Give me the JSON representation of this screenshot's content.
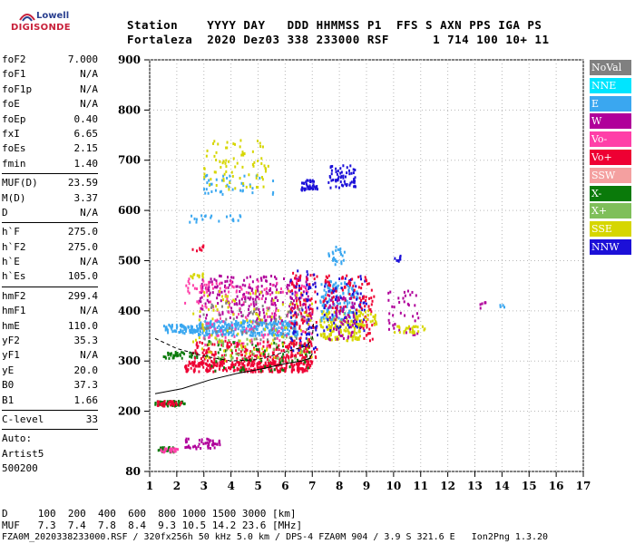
{
  "logo": {
    "line1": "Lowell",
    "line2": "DIGISONDE"
  },
  "header": {
    "line1": "Station    YYYY DAY   DDD HHMMSS P1  FFS S AXN PPS IGA PS",
    "line2": "Fortaleza  2020 Dez03 338 233000 RSF      1 714 100 10+ 11"
  },
  "parameters": [
    {
      "k": "foF2",
      "v": "7.000"
    },
    {
      "k": "foF1",
      "v": "N/A"
    },
    {
      "k": "foF1p",
      "v": "N/A"
    },
    {
      "k": "foE",
      "v": "N/A"
    },
    {
      "k": "foEp",
      "v": "0.40"
    },
    {
      "k": "fxI",
      "v": "6.65"
    },
    {
      "k": "foEs",
      "v": "2.15"
    },
    {
      "k": "fmin",
      "v": "1.40"
    },
    {
      "k": "MUF(D)",
      "v": "23.59"
    },
    {
      "k": "M(D)",
      "v": "3.37"
    },
    {
      "k": "D",
      "v": "N/A"
    },
    {
      "k": "h`F",
      "v": "275.0"
    },
    {
      "k": "h`F2",
      "v": "275.0"
    },
    {
      "k": "h`E",
      "v": "N/A"
    },
    {
      "k": "h`Es",
      "v": "105.0"
    },
    {
      "k": "hmF2",
      "v": "299.4"
    },
    {
      "k": "hmF1",
      "v": "N/A"
    },
    {
      "k": "hmE",
      "v": "110.0"
    },
    {
      "k": "yF2",
      "v": "35.3"
    },
    {
      "k": "yF1",
      "v": "N/A"
    },
    {
      "k": "yE",
      "v": "20.0"
    },
    {
      "k": "B0",
      "v": "37.3"
    },
    {
      "k": "B1",
      "v": "1.66"
    },
    {
      "k": "C-level",
      "v": "33"
    }
  ],
  "auto": {
    "line1": "Auto:",
    "line2": "Artist5",
    "line3": "500200"
  },
  "legend": [
    {
      "label": "NoVal",
      "color": "#808080"
    },
    {
      "label": "NNE",
      "color": "#00e5ff"
    },
    {
      "label": "E",
      "color": "#3aa7f0"
    },
    {
      "label": "W",
      "color": "#b0009a"
    },
    {
      "label": "Vo-",
      "color": "#ff3fa8"
    },
    {
      "label": "Vo+",
      "color": "#ee0033"
    },
    {
      "label": "SSW",
      "color": "#f4a0a0"
    },
    {
      "label": "X-",
      "color": "#0a7a0a"
    },
    {
      "label": "X+",
      "color": "#7fbf5a"
    },
    {
      "label": "SSE",
      "color": "#d6d600"
    },
    {
      "label": "NNW",
      "color": "#1c10d8"
    }
  ],
  "footer": {
    "d_line": "D     100  200  400  600  800 1000 1500 3000 [km]",
    "muf_line": "MUF   7.3  7.4  7.8  8.4  9.3 10.5 14.2 23.6 [MHz]",
    "file_line": "FZA0M_2020338233000.RSF / 320fx256h 50 kHz 5.0 km / DPS-4 FZA0M 904 / 3.9 S 321.6 E   Ion2Png 1.3.20"
  },
  "chart_data": {
    "type": "scatter",
    "xlim": [
      1,
      17
    ],
    "ylim": [
      80,
      900
    ],
    "xticks": [
      1,
      2,
      3,
      4,
      5,
      6,
      7,
      8,
      9,
      10,
      11,
      12,
      13,
      14,
      15,
      16,
      17
    ],
    "yticks": [
      80,
      200,
      300,
      400,
      500,
      600,
      700,
      800,
      900
    ],
    "grid": true,
    "legend_position": "right",
    "echo_clusters": [
      {
        "x": [
          1.2,
          2.3
        ],
        "y": [
          210,
          220
        ],
        "color": "#0a7a0a",
        "n": 60
      },
      {
        "x": [
          1.2,
          2.2
        ],
        "y": [
          210,
          220
        ],
        "color": "#ee0033",
        "n": 30
      },
      {
        "x": [
          1.3,
          1.9
        ],
        "y": [
          118,
          128
        ],
        "color": "#0a7a0a",
        "n": 25
      },
      {
        "x": [
          1.4,
          2.1
        ],
        "y": [
          118,
          126
        ],
        "color": "#ff3fa8",
        "n": 25
      },
      {
        "x": [
          2.3,
          3.6
        ],
        "y": [
          125,
          145
        ],
        "color": "#b0009a",
        "n": 50
      },
      {
        "x": [
          1.5,
          2.8
        ],
        "y": [
          305,
          318
        ],
        "color": "#0a7a0a",
        "n": 40
      },
      {
        "x": [
          2.3,
          7.0
        ],
        "y": [
          278,
          300
        ],
        "color": "#ee0033",
        "n": 260
      },
      {
        "x": [
          2.6,
          7.0
        ],
        "y": [
          290,
          340
        ],
        "color": "#ee0033",
        "n": 260
      },
      {
        "x": [
          3.0,
          7.1
        ],
        "y": [
          300,
          350
        ],
        "color": "#7fbf5a",
        "n": 70
      },
      {
        "x": [
          3.0,
          7.0
        ],
        "y": [
          280,
          340
        ],
        "color": "#0a7a0a",
        "n": 60
      },
      {
        "x": [
          2.8,
          6.5
        ],
        "y": [
          350,
          380
        ],
        "color": "#3aa7f0",
        "n": 300
      },
      {
        "x": [
          1.5,
          2.8
        ],
        "y": [
          355,
          372
        ],
        "color": "#3aa7f0",
        "n": 70
      },
      {
        "x": [
          2.8,
          7.0
        ],
        "y": [
          380,
          470
        ],
        "color": "#b0009a",
        "n": 250
      },
      {
        "x": [
          2.8,
          7.0
        ],
        "y": [
          330,
          460
        ],
        "color": "#ff3fa8",
        "n": 150
      },
      {
        "x": [
          2.6,
          7.0
        ],
        "y": [
          300,
          440
        ],
        "color": "#d6d600",
        "n": 120
      },
      {
        "x": [
          2.8,
          6.9
        ],
        "y": [
          340,
          420
        ],
        "color": "#808080",
        "n": 60
      },
      {
        "x": [
          6.2,
          7.2
        ],
        "y": [
          300,
          480
        ],
        "color": "#ee0033",
        "n": 100
      },
      {
        "x": [
          6.2,
          7.2
        ],
        "y": [
          320,
          480
        ],
        "color": "#1c10d8",
        "n": 60
      },
      {
        "x": [
          7.3,
          8.8
        ],
        "y": [
          340,
          400
        ],
        "color": "#d6d600",
        "n": 160
      },
      {
        "x": [
          7.3,
          8.7
        ],
        "y": [
          380,
          460
        ],
        "color": "#3aa7f0",
        "n": 120
      },
      {
        "x": [
          7.4,
          9.0
        ],
        "y": [
          360,
          470
        ],
        "color": "#1c10d8",
        "n": 70
      },
      {
        "x": [
          7.4,
          9.0
        ],
        "y": [
          400,
          470
        ],
        "color": "#ee0033",
        "n": 60
      },
      {
        "x": [
          7.6,
          8.6
        ],
        "y": [
          340,
          430
        ],
        "color": "#b0009a",
        "n": 60
      },
      {
        "x": [
          8.8,
          9.3
        ],
        "y": [
          340,
          460
        ],
        "color": "#ee0033",
        "n": 40
      },
      {
        "x": [
          8.7,
          9.4
        ],
        "y": [
          370,
          400
        ],
        "color": "#d6d600",
        "n": 30
      },
      {
        "x": [
          7.6,
          8.2
        ],
        "y": [
          490,
          530
        ],
        "color": "#3aa7f0",
        "n": 25
      },
      {
        "x": [
          9.8,
          11.0
        ],
        "y": [
          350,
          440
        ],
        "color": "#b0009a",
        "n": 40
      },
      {
        "x": [
          10.0,
          11.2
        ],
        "y": [
          355,
          370
        ],
        "color": "#d6d600",
        "n": 30
      },
      {
        "x": [
          10.0,
          10.3
        ],
        "y": [
          495,
          510
        ],
        "color": "#1c10d8",
        "n": 8
      },
      {
        "x": [
          13.2,
          13.4
        ],
        "y": [
          400,
          420
        ],
        "color": "#b0009a",
        "n": 6
      },
      {
        "x": [
          13.9,
          14.1
        ],
        "y": [
          400,
          412
        ],
        "color": "#3aa7f0",
        "n": 4
      },
      {
        "x": [
          6.6,
          7.2
        ],
        "y": [
          640,
          660
        ],
        "color": "#1c10d8",
        "n": 40
      },
      {
        "x": [
          7.6,
          8.6
        ],
        "y": [
          645,
          690
        ],
        "color": "#1c10d8",
        "n": 60
      },
      {
        "x": [
          3.0,
          5.6
        ],
        "y": [
          630,
          670
        ],
        "color": "#3aa7f0",
        "n": 40
      },
      {
        "x": [
          3.0,
          5.4
        ],
        "y": [
          640,
          740
        ],
        "color": "#d6d600",
        "n": 80
      },
      {
        "x": [
          2.3,
          4.5
        ],
        "y": [
          575,
          590
        ],
        "color": "#3aa7f0",
        "n": 20
      },
      {
        "x": [
          2.2,
          3.2
        ],
        "y": [
          415,
          470
        ],
        "color": "#ff3fa8",
        "n": 20
      },
      {
        "x": [
          2.4,
          3.0
        ],
        "y": [
          465,
          475
        ],
        "color": "#d6d600",
        "n": 12
      },
      {
        "x": [
          2.4,
          3.0
        ],
        "y": [
          515,
          530
        ],
        "color": "#ee0033",
        "n": 8
      }
    ],
    "profile_curves": [
      {
        "name": "lower",
        "points": [
          [
            1.2,
            235
          ],
          [
            2.2,
            245
          ],
          [
            3.2,
            262
          ],
          [
            4.2,
            275
          ],
          [
            5.2,
            285
          ],
          [
            6.0,
            295
          ],
          [
            6.6,
            300
          ],
          [
            6.9,
            305
          ],
          [
            7.0,
            315
          ]
        ]
      },
      {
        "name": "upper",
        "points": [
          [
            1.2,
            345
          ],
          [
            2.0,
            325
          ],
          [
            3.0,
            310
          ],
          [
            4.0,
            300
          ],
          [
            5.0,
            303
          ],
          [
            6.0,
            318
          ],
          [
            6.8,
            330
          ],
          [
            7.0,
            345
          ],
          [
            7.05,
            380
          ]
        ]
      }
    ]
  }
}
